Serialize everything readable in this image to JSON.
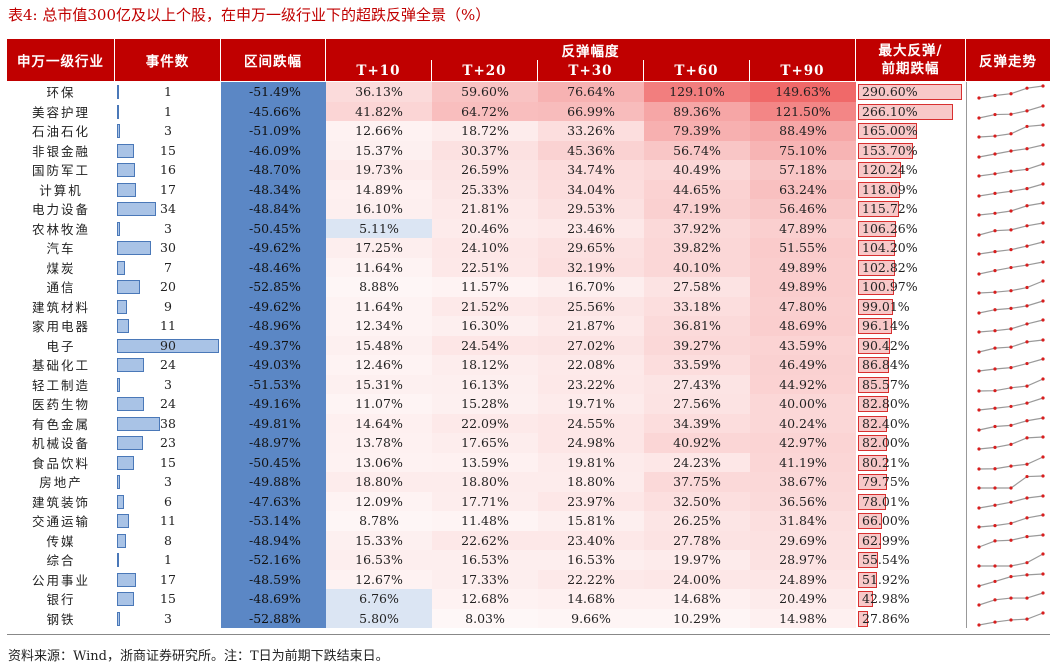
{
  "title": "表4:  总市值300亿及以上个股，在申万一级行业下的超跌反弹全景（%）",
  "headers": {
    "industry": "申万一级行业",
    "count": "事件数",
    "drop": "区间跌幅",
    "rebound_group": "反弹幅度",
    "t10": "T+10",
    "t20": "T+20",
    "t30": "T+30",
    "t60": "T+60",
    "t90": "T+90",
    "max_line1": "最大反弹/",
    "max_line2": "前期跌幅",
    "trend": "反弹走势"
  },
  "colors": {
    "header_bg": "#c00000",
    "drop_bg": "#5b87c5",
    "count_bar": "#a9c3e6",
    "max_bar": "#f8c8c8",
    "spark_line": "#9a9a9a",
    "spark_dot": "#d81e1e"
  },
  "rows": [
    {
      "name": "环保",
      "count": "1",
      "drop": "-51.49%",
      "t10": "36.13%",
      "t20": "59.60%",
      "t30": "76.64%",
      "t60": "129.10%",
      "t90": "149.63%",
      "max": "290.60%"
    },
    {
      "name": "美容护理",
      "count": "1",
      "drop": "-45.66%",
      "t10": "41.82%",
      "t20": "64.72%",
      "t30": "66.99%",
      "t60": "89.36%",
      "t90": "121.50%",
      "max": "266.10%"
    },
    {
      "name": "石油石化",
      "count": "3",
      "drop": "-51.09%",
      "t10": "12.66%",
      "t20": "18.72%",
      "t30": "33.26%",
      "t60": "79.39%",
      "t90": "88.49%",
      "max": "165.00%"
    },
    {
      "name": "非银金融",
      "count": "15",
      "drop": "-46.09%",
      "t10": "15.37%",
      "t20": "30.37%",
      "t30": "45.36%",
      "t60": "56.74%",
      "t90": "75.10%",
      "max": "153.70%"
    },
    {
      "name": "国防军工",
      "count": "16",
      "drop": "-48.70%",
      "t10": "19.73%",
      "t20": "26.59%",
      "t30": "34.74%",
      "t60": "40.49%",
      "t90": "57.18%",
      "max": "120.24%"
    },
    {
      "name": "计算机",
      "count": "17",
      "drop": "-48.34%",
      "t10": "14.89%",
      "t20": "25.33%",
      "t30": "34.04%",
      "t60": "44.65%",
      "t90": "63.24%",
      "max": "118.09%"
    },
    {
      "name": "电力设备",
      "count": "34",
      "drop": "-48.84%",
      "t10": "16.10%",
      "t20": "21.81%",
      "t30": "29.53%",
      "t60": "47.19%",
      "t90": "56.46%",
      "max": "115.72%"
    },
    {
      "name": "农林牧渔",
      "count": "3",
      "drop": "-50.45%",
      "t10": "5.11%",
      "t20": "20.46%",
      "t30": "23.46%",
      "t60": "37.92%",
      "t90": "47.89%",
      "max": "106.26%"
    },
    {
      "name": "汽车",
      "count": "30",
      "drop": "-49.62%",
      "t10": "17.25%",
      "t20": "24.10%",
      "t30": "29.65%",
      "t60": "39.82%",
      "t90": "51.55%",
      "max": "104.20%"
    },
    {
      "name": "煤炭",
      "count": "7",
      "drop": "-48.46%",
      "t10": "11.64%",
      "t20": "22.51%",
      "t30": "32.19%",
      "t60": "40.10%",
      "t90": "49.89%",
      "max": "102.82%"
    },
    {
      "name": "通信",
      "count": "20",
      "drop": "-52.85%",
      "t10": "8.88%",
      "t20": "11.57%",
      "t30": "16.70%",
      "t60": "27.58%",
      "t90": "49.89%",
      "max": "100.97%"
    },
    {
      "name": "建筑材料",
      "count": "9",
      "drop": "-49.62%",
      "t10": "11.64%",
      "t20": "21.52%",
      "t30": "25.56%",
      "t60": "33.18%",
      "t90": "47.80%",
      "max": "99.01%"
    },
    {
      "name": "家用电器",
      "count": "11",
      "drop": "-48.96%",
      "t10": "12.34%",
      "t20": "16.30%",
      "t30": "21.87%",
      "t60": "36.81%",
      "t90": "48.69%",
      "max": "96.14%"
    },
    {
      "name": "电子",
      "count": "90",
      "drop": "-49.37%",
      "t10": "15.48%",
      "t20": "24.54%",
      "t30": "27.02%",
      "t60": "39.27%",
      "t90": "43.59%",
      "max": "90.42%"
    },
    {
      "name": "基础化工",
      "count": "24",
      "drop": "-49.03%",
      "t10": "12.46%",
      "t20": "18.12%",
      "t30": "22.08%",
      "t60": "33.59%",
      "t90": "46.49%",
      "max": "86.84%"
    },
    {
      "name": "轻工制造",
      "count": "3",
      "drop": "-51.53%",
      "t10": "15.31%",
      "t20": "16.13%",
      "t30": "23.22%",
      "t60": "27.43%",
      "t90": "44.92%",
      "max": "85.57%"
    },
    {
      "name": "医药生物",
      "count": "24",
      "drop": "-49.16%",
      "t10": "11.07%",
      "t20": "15.28%",
      "t30": "19.71%",
      "t60": "27.56%",
      "t90": "40.00%",
      "max": "82.80%"
    },
    {
      "name": "有色金属",
      "count": "38",
      "drop": "-49.81%",
      "t10": "14.64%",
      "t20": "22.09%",
      "t30": "24.55%",
      "t60": "34.39%",
      "t90": "40.24%",
      "max": "82.40%"
    },
    {
      "name": "机械设备",
      "count": "23",
      "drop": "-48.97%",
      "t10": "13.78%",
      "t20": "17.65%",
      "t30": "24.98%",
      "t60": "40.92%",
      "t90": "42.97%",
      "max": "82.00%"
    },
    {
      "name": "食品饮料",
      "count": "15",
      "drop": "-50.45%",
      "t10": "13.06%",
      "t20": "13.59%",
      "t30": "19.81%",
      "t60": "24.23%",
      "t90": "41.19%",
      "max": "80.21%"
    },
    {
      "name": "房地产",
      "count": "3",
      "drop": "-49.88%",
      "t10": "18.80%",
      "t20": "18.80%",
      "t30": "18.80%",
      "t60": "37.75%",
      "t90": "38.67%",
      "max": "79.75%"
    },
    {
      "name": "建筑装饰",
      "count": "6",
      "drop": "-47.63%",
      "t10": "12.09%",
      "t20": "17.71%",
      "t30": "23.97%",
      "t60": "32.50%",
      "t90": "36.56%",
      "max": "78.01%"
    },
    {
      "name": "交通运输",
      "count": "11",
      "drop": "-53.14%",
      "t10": "8.78%",
      "t20": "11.48%",
      "t30": "15.81%",
      "t60": "26.25%",
      "t90": "31.84%",
      "max": "66.00%"
    },
    {
      "name": "传媒",
      "count": "8",
      "drop": "-48.94%",
      "t10": "15.33%",
      "t20": "22.62%",
      "t30": "23.40%",
      "t60": "27.78%",
      "t90": "29.69%",
      "max": "62.99%"
    },
    {
      "name": "综合",
      "count": "1",
      "drop": "-52.16%",
      "t10": "16.53%",
      "t20": "16.53%",
      "t30": "16.53%",
      "t60": "19.97%",
      "t90": "28.97%",
      "max": "55.54%"
    },
    {
      "name": "公用事业",
      "count": "17",
      "drop": "-48.59%",
      "t10": "12.67%",
      "t20": "17.33%",
      "t30": "22.22%",
      "t60": "24.00%",
      "t90": "24.89%",
      "max": "51.92%"
    },
    {
      "name": "银行",
      "count": "15",
      "drop": "-48.69%",
      "t10": "6.76%",
      "t20": "12.68%",
      "t30": "14.68%",
      "t60": "14.68%",
      "t90": "20.49%",
      "max": "42.98%"
    },
    {
      "name": "钢铁",
      "count": "3",
      "drop": "-52.88%",
      "t10": "5.80%",
      "t20": "8.03%",
      "t30": "9.66%",
      "t60": "10.29%",
      "t90": "14.98%",
      "max": "27.86%"
    }
  ],
  "note": "资料来源：Wind，浙商证券研究所。注：T日为前期下跌结束日。"
}
